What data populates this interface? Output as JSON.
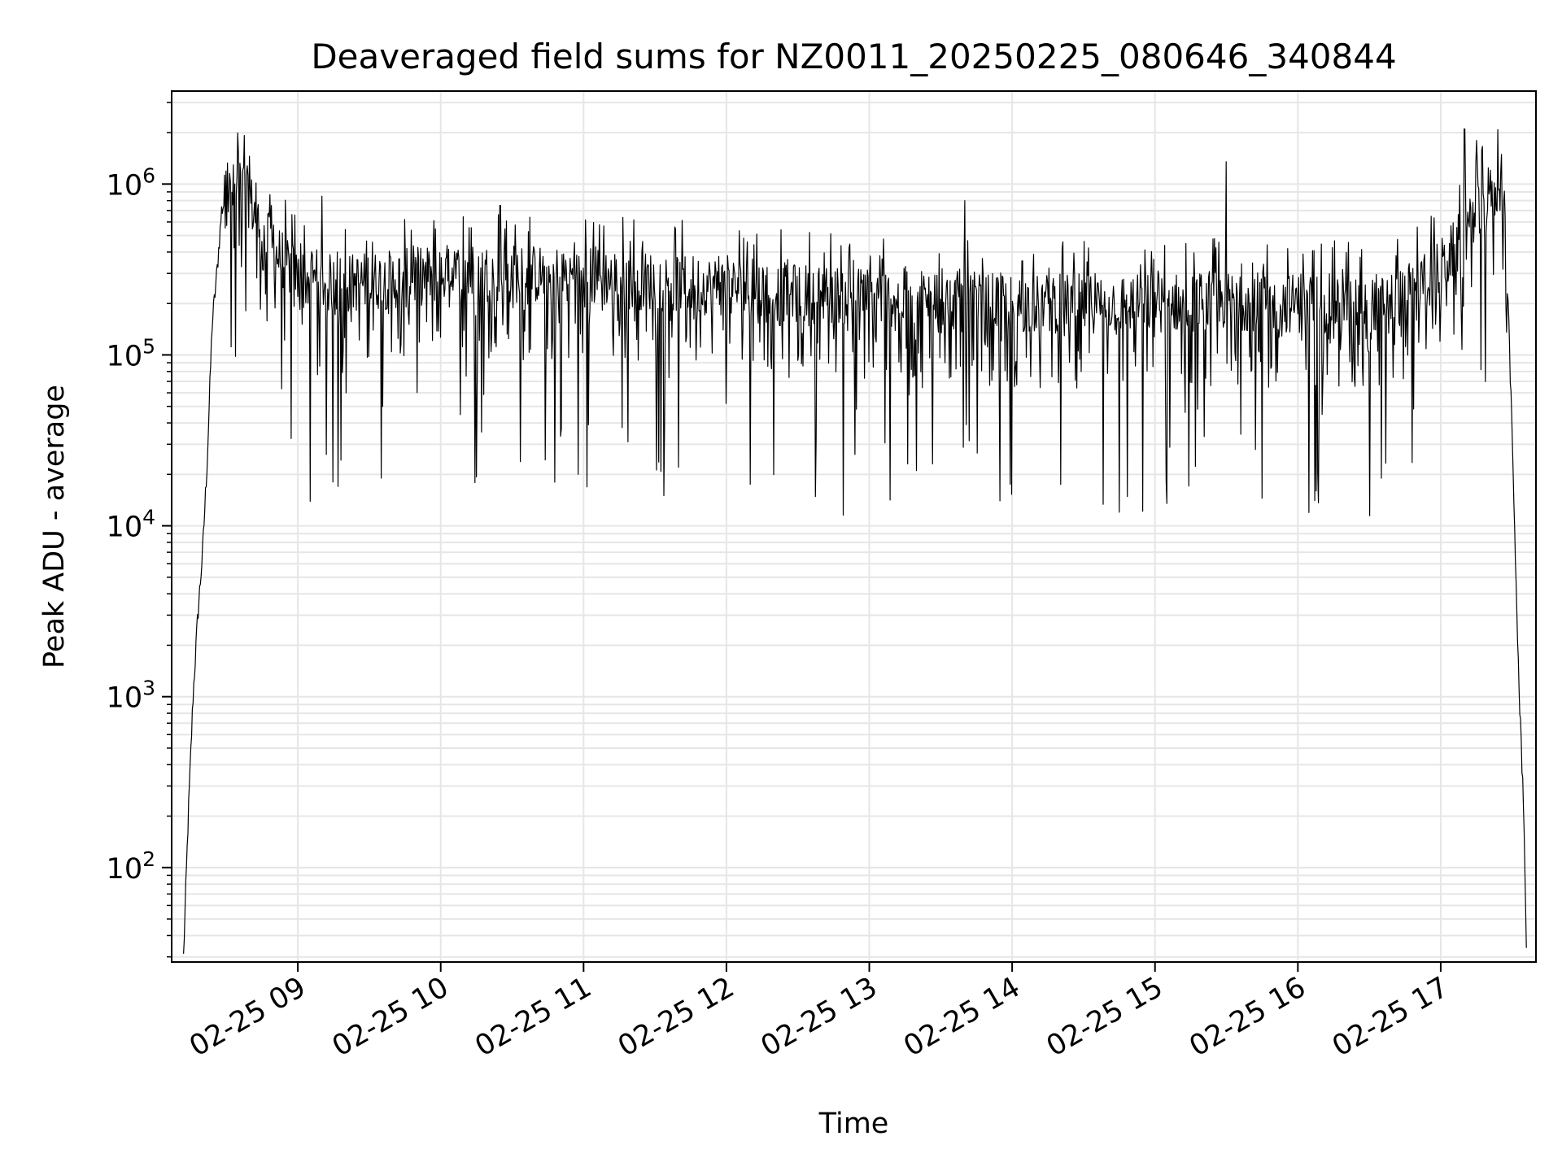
{
  "chart_data": {
    "type": "line",
    "title": "Deaveraged field sums for NZ0011_20250225_080646_340844",
    "xlabel": "Time",
    "ylabel": "Peak ADU - average",
    "y_scale": "log",
    "grid": true,
    "line_color": "#000000",
    "grid_color": "#e6e6e6",
    "xlim": [
      "2025-02-25T08:07",
      "2025-02-25T17:40"
    ],
    "ylim": [
      28,
      3500000
    ],
    "x_ticks": [
      {
        "t": "2025-02-25T09:00",
        "label": "02-25 09"
      },
      {
        "t": "2025-02-25T10:00",
        "label": "02-25 10"
      },
      {
        "t": "2025-02-25T11:00",
        "label": "02-25 11"
      },
      {
        "t": "2025-02-25T12:00",
        "label": "02-25 12"
      },
      {
        "t": "2025-02-25T13:00",
        "label": "02-25 13"
      },
      {
        "t": "2025-02-25T14:00",
        "label": "02-25 14"
      },
      {
        "t": "2025-02-25T15:00",
        "label": "02-25 15"
      },
      {
        "t": "2025-02-25T16:00",
        "label": "02-25 16"
      },
      {
        "t": "2025-02-25T17:00",
        "label": "02-25 17"
      }
    ],
    "y_ticks": [
      {
        "v": 100,
        "base": "10",
        "exp": "2"
      },
      {
        "v": 1000,
        "base": "10",
        "exp": "3"
      },
      {
        "v": 10000,
        "base": "10",
        "exp": "4"
      },
      {
        "v": 100000,
        "base": "10",
        "exp": "5"
      },
      {
        "v": 1000000,
        "base": "10",
        "exp": "6"
      }
    ],
    "series": [
      {
        "x": [
          "2025-02-25T08:12",
          "2025-02-25T08:14",
          "2025-02-25T08:16",
          "2025-02-25T08:18",
          "2025-02-25T08:20",
          "2025-02-25T08:22",
          "2025-02-25T08:24",
          "2025-02-25T08:26",
          "2025-02-25T08:28",
          "2025-02-25T08:30",
          "2025-02-25T08:33",
          "2025-02-25T08:36",
          "2025-02-25T08:40",
          "2025-02-25T08:45",
          "2025-02-25T08:50",
          "2025-02-25T08:55",
          "2025-02-25T09:00",
          "2025-02-25T09:15",
          "2025-02-25T09:30",
          "2025-02-25T09:45",
          "2025-02-25T10:00",
          "2025-02-25T10:30",
          "2025-02-25T11:00",
          "2025-02-25T11:30",
          "2025-02-25T12:00",
          "2025-02-25T12:30",
          "2025-02-25T13:00",
          "2025-02-25T13:30",
          "2025-02-25T14:00",
          "2025-02-25T14:30",
          "2025-02-25T15:00",
          "2025-02-25T15:30",
          "2025-02-25T16:00",
          "2025-02-25T16:30",
          "2025-02-25T16:45",
          "2025-02-25T17:00",
          "2025-02-25T17:10",
          "2025-02-25T17:20",
          "2025-02-25T17:25",
          "2025-02-25T17:27",
          "2025-02-25T17:29",
          "2025-02-25T17:31",
          "2025-02-25T17:33",
          "2025-02-25T17:35",
          "2025-02-25T17:36"
        ],
        "y": [
          30,
          200,
          1000,
          3000,
          7000,
          25000,
          150000,
          300000,
          700000,
          850000,
          900000,
          1000000,
          800000,
          500000,
          400000,
          350000,
          280000,
          260000,
          270000,
          280000,
          300000,
          300000,
          290000,
          270000,
          250000,
          230000,
          220000,
          210000,
          200000,
          200000,
          200000,
          210000,
          200000,
          200000,
          220000,
          320000,
          500000,
          800000,
          1000000,
          800000,
          100000,
          10000,
          1000,
          200,
          30
        ]
      }
    ],
    "spikes_max": [
      {
        "t": "2025-02-25T08:35",
        "v": 1500000
      },
      {
        "t": "2025-02-25T09:10",
        "v": 850000
      },
      {
        "t": "2025-02-25T10:25",
        "v": 750000
      },
      {
        "t": "2025-02-25T13:40",
        "v": 800000
      },
      {
        "t": "2025-02-25T15:30",
        "v": 1350000
      },
      {
        "t": "2025-02-25T17:10",
        "v": 2100000
      },
      {
        "t": "2025-02-25T17:15",
        "v": 1800000
      }
    ],
    "spikes_min": [
      {
        "t": "2025-02-25T09:17",
        "v": 17000
      },
      {
        "t": "2025-02-25T09:35",
        "v": 19000
      },
      {
        "t": "2025-02-25T10:48",
        "v": 18000
      },
      {
        "t": "2025-02-25T11:40",
        "v": 22000
      },
      {
        "t": "2025-02-25T12:10",
        "v": 17500
      },
      {
        "t": "2025-02-25T13:55",
        "v": 14000
      },
      {
        "t": "2025-02-25T14:45",
        "v": 12000
      },
      {
        "t": "2025-02-25T15:05",
        "v": 13500
      },
      {
        "t": "2025-02-25T15:45",
        "v": 14500
      },
      {
        "t": "2025-02-25T16:35",
        "v": 19000
      }
    ]
  }
}
